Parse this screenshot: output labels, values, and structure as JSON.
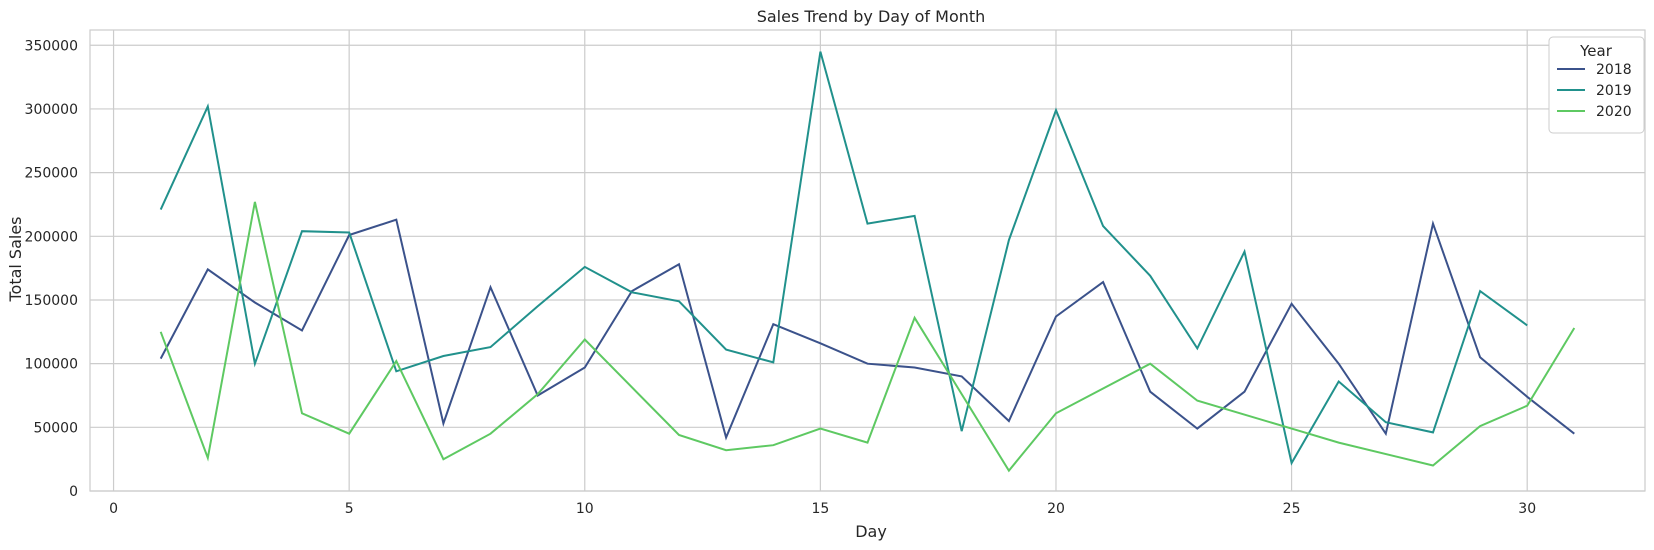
{
  "chart_data": {
    "type": "line",
    "title": "Sales Trend by Day of Month",
    "xlabel": "Day",
    "ylabel": "Total Sales",
    "xlim": [
      -0.5,
      32.5
    ],
    "ylim": [
      0,
      362000
    ],
    "xticks": [
      0,
      5,
      10,
      15,
      20,
      25,
      30
    ],
    "yticks": [
      0,
      50000,
      100000,
      150000,
      200000,
      250000,
      300000,
      350000
    ],
    "grid": true,
    "legend": {
      "title": "Year",
      "position": "top-right"
    },
    "series": [
      {
        "name": "2018",
        "color": "#3b528b",
        "x": [
          1,
          2,
          3,
          4,
          5,
          6,
          7,
          8,
          9,
          10,
          11,
          12,
          13,
          14,
          15,
          16,
          17,
          18,
          19,
          20,
          21,
          22,
          23,
          24,
          25,
          26,
          27,
          28,
          29,
          30,
          31
        ],
        "y": [
          104000,
          174000,
          148000,
          126000,
          201000,
          213000,
          53000,
          160000,
          75000,
          97000,
          157000,
          178000,
          42000,
          131000,
          116000,
          100000,
          97000,
          90000,
          55000,
          137000,
          164000,
          78000,
          49000,
          78000,
          147000,
          100000,
          45000,
          210000,
          105000,
          74000,
          45000
        ]
      },
      {
        "name": "2019",
        "color": "#21918c",
        "x": [
          1,
          2,
          3,
          4,
          5,
          6,
          7,
          8,
          9,
          10,
          11,
          12,
          13,
          14,
          15,
          16,
          17,
          18,
          19,
          20,
          21,
          22,
          23,
          24,
          25,
          26,
          27,
          28,
          29,
          30
        ],
        "y": [
          221000,
          302000,
          100000,
          204000,
          203000,
          94000,
          106000,
          113000,
          145000,
          176000,
          156000,
          149000,
          111000,
          101000,
          345000,
          210000,
          216000,
          47000,
          197000,
          299000,
          208000,
          169000,
          112000,
          188000,
          22000,
          86000,
          54000,
          46000,
          157000,
          130000
        ]
      },
      {
        "name": "2020",
        "color": "#5ec962",
        "x": [
          1,
          2,
          3,
          4,
          5,
          6,
          7,
          8,
          9,
          10,
          12,
          13,
          14,
          15,
          16,
          17,
          19,
          20,
          22,
          23,
          25,
          26,
          28,
          29,
          30,
          31
        ],
        "y": [
          125000,
          26000,
          227000,
          61000,
          45000,
          102000,
          25000,
          45000,
          76000,
          119000,
          44000,
          32000,
          36000,
          49000,
          38000,
          136000,
          16000,
          61000,
          100000,
          71000,
          49000,
          38000,
          20000,
          51000,
          67000,
          128000
        ]
      }
    ]
  }
}
